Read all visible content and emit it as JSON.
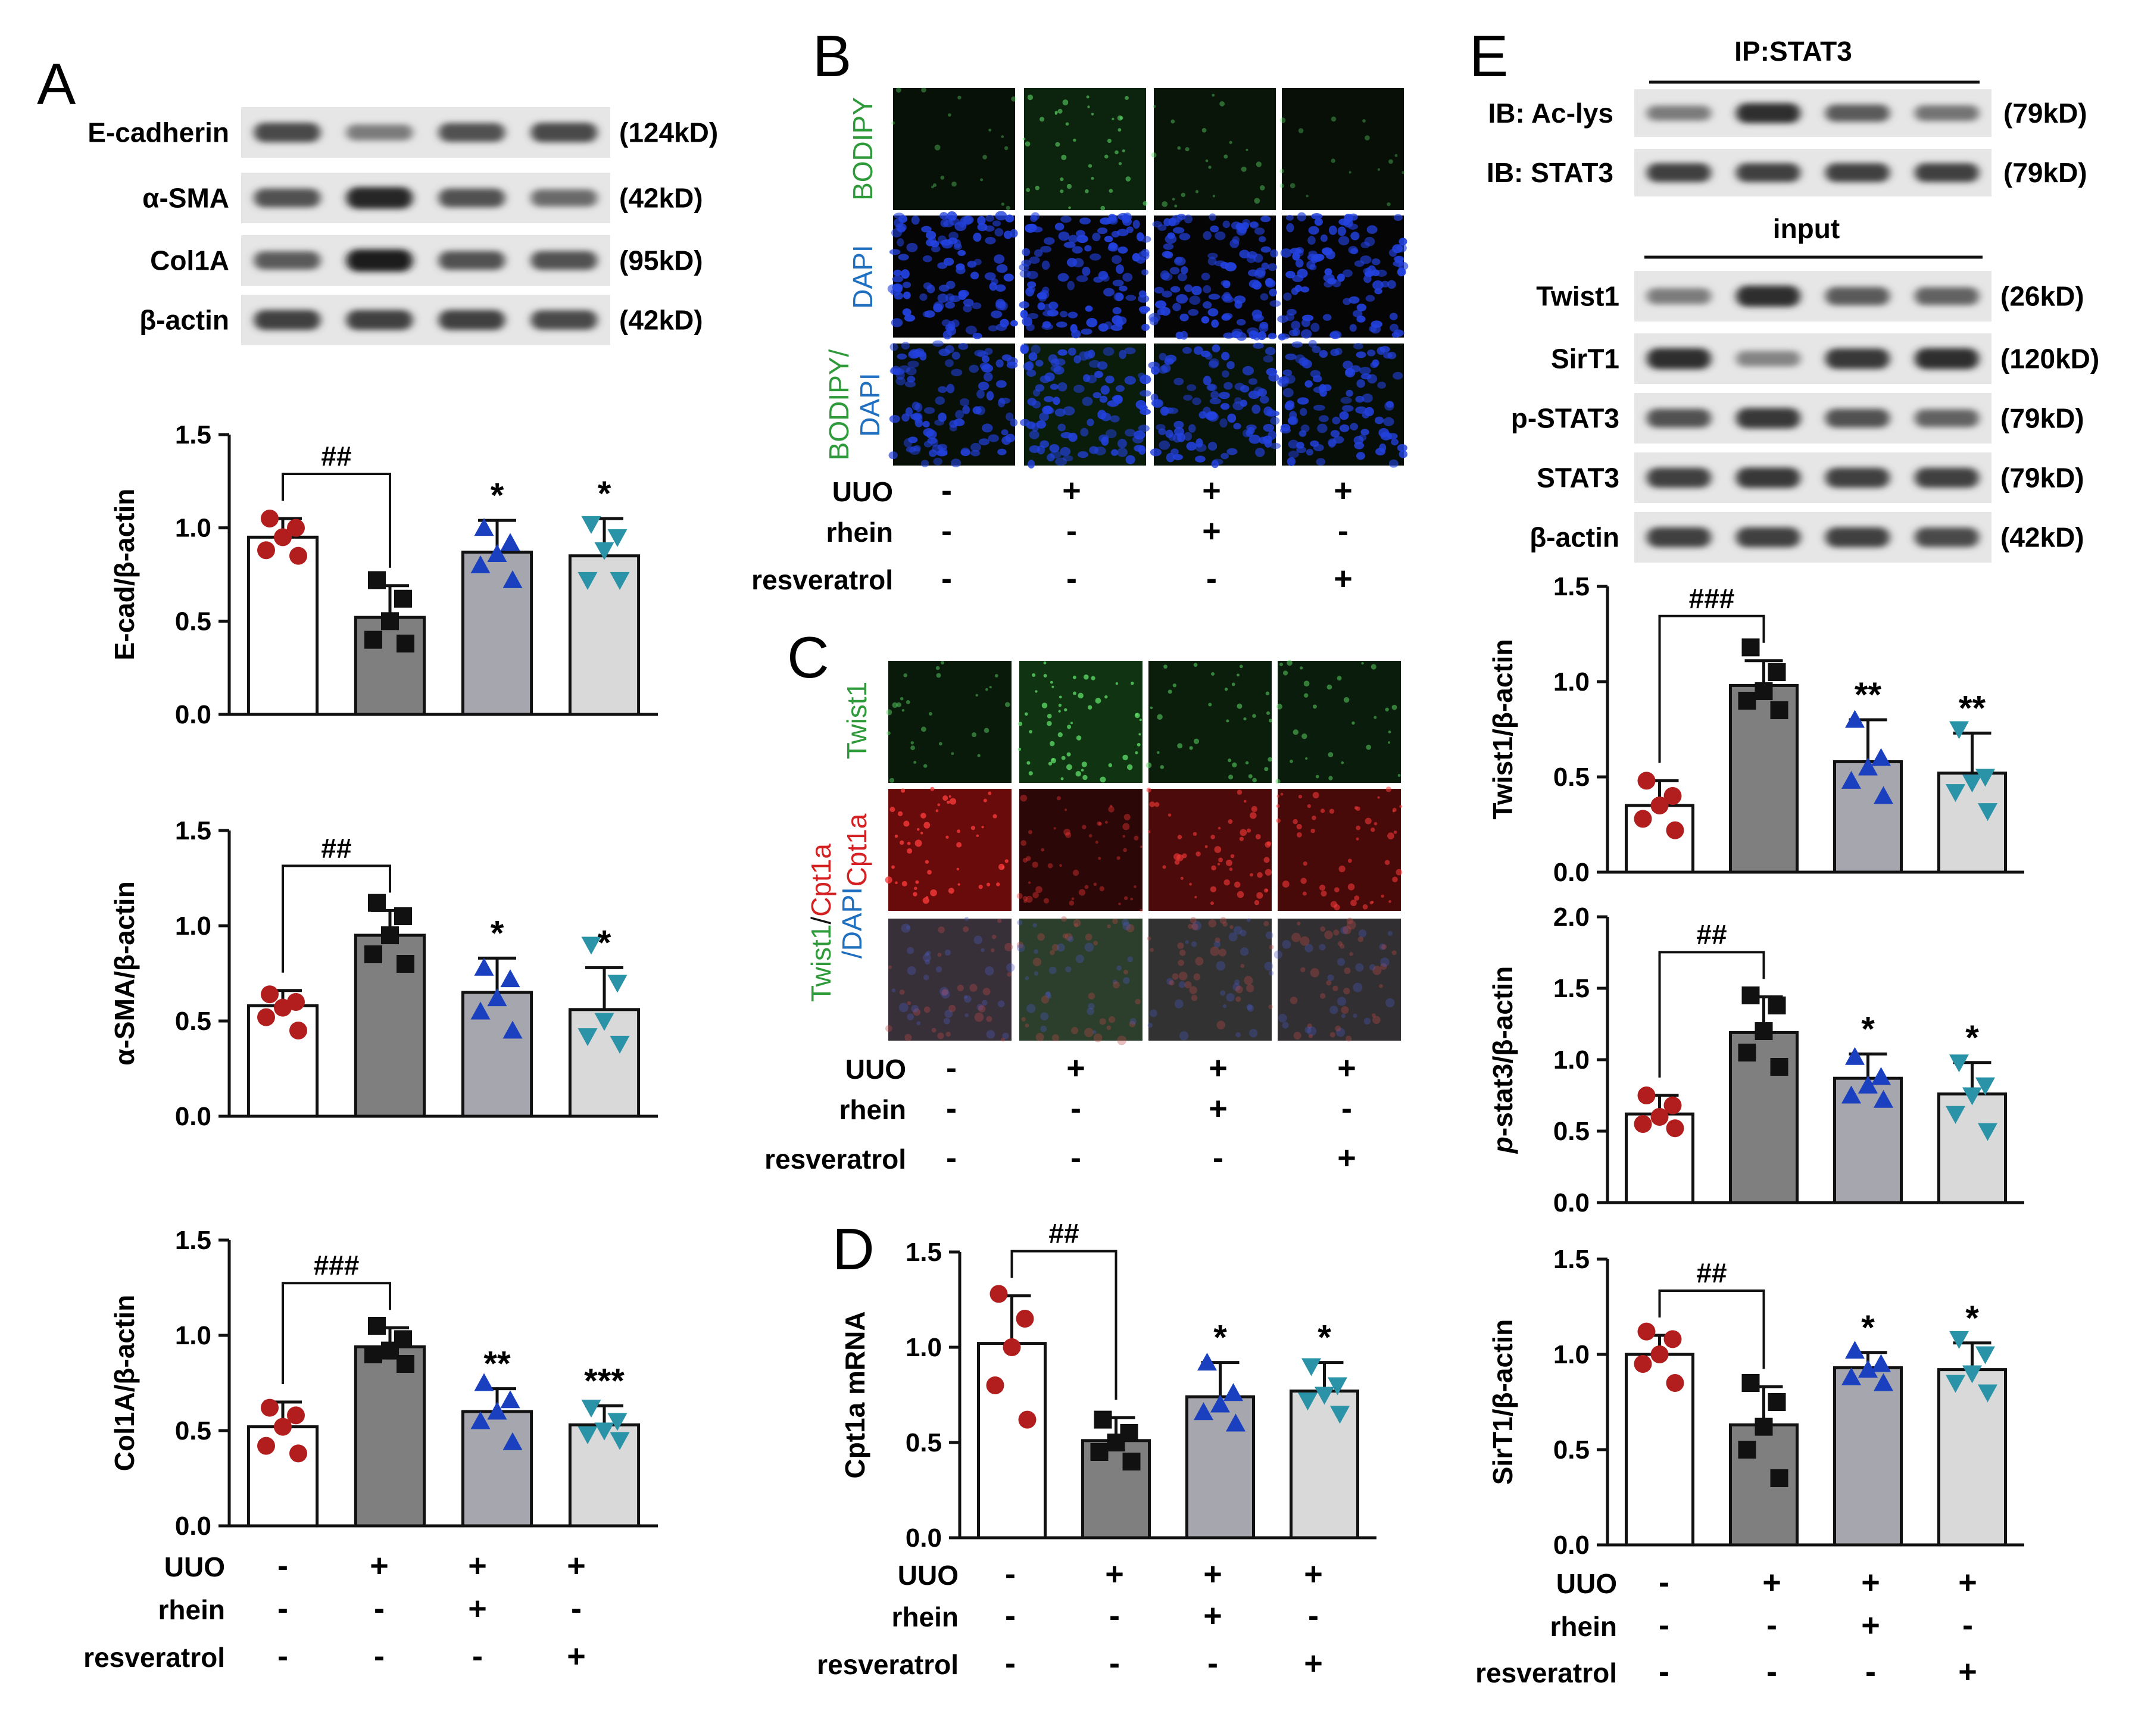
{
  "panel_labels": {
    "A": "A",
    "B": "B",
    "C": "C",
    "D": "D",
    "E": "E"
  },
  "treatment": {
    "row_labels": [
      "UUO",
      "rhein",
      "resveratrol"
    ],
    "signs": [
      [
        "-",
        "+",
        "+",
        "+"
      ],
      [
        "-",
        "-",
        "+",
        "-"
      ],
      [
        "-",
        "-",
        "-",
        "+"
      ]
    ]
  },
  "colors": {
    "group_fill": [
      "#ffffff",
      "#7f7f7f",
      "#a6a6ae",
      "#d9d9d9"
    ],
    "dot_color": [
      "#b21e1e",
      "#111111",
      "#1a3fbf",
      "#2a93a8"
    ],
    "dot_shape": [
      "circle",
      "square",
      "triangle-up",
      "triangle-down"
    ],
    "bodipy_green": "#2e9a3a",
    "dapi_blue": "#1f6fc1",
    "cpt1a_red": "#d42020"
  },
  "panelA": {
    "blots": [
      {
        "name": "E-cadherin",
        "size": "(124kD)",
        "intensity": [
          0.75,
          0.45,
          0.7,
          0.75
        ]
      },
      {
        "name": "α-SMA",
        "size": "(42kD)",
        "intensity": [
          0.7,
          0.95,
          0.7,
          0.55
        ]
      },
      {
        "name": "Col1A",
        "size": "(95kD)",
        "intensity": [
          0.65,
          1.0,
          0.7,
          0.7
        ]
      },
      {
        "name": "β-actin",
        "size": "(42kD)",
        "intensity": [
          0.8,
          0.8,
          0.8,
          0.75
        ]
      }
    ]
  },
  "panelB": {
    "row_labels": [
      [
        "BODIPY"
      ],
      [
        "DAPI"
      ],
      [
        "BODIPY/",
        "DAPI"
      ]
    ],
    "green_level": [
      0.15,
      0.55,
      0.25,
      0.12
    ]
  },
  "panelC": {
    "row_labels": [
      [
        "Twist1"
      ],
      [
        "Cpt1a"
      ],
      [
        "Twist1/Cpt1a",
        "/DAPI"
      ]
    ],
    "green_level": [
      0.35,
      0.9,
      0.45,
      0.4
    ],
    "red_level": [
      0.95,
      0.3,
      0.65,
      0.6
    ]
  },
  "panelE": {
    "ip_header": "IP:STAT3",
    "input_header": "input",
    "ip_blots": [
      {
        "name": "IB: Ac-lys",
        "size": "(79kD)",
        "intensity": [
          0.45,
          0.9,
          0.65,
          0.5
        ]
      },
      {
        "name": "IB: STAT3",
        "size": "(79kD)",
        "intensity": [
          0.8,
          0.8,
          0.8,
          0.8
        ]
      }
    ],
    "input_blots": [
      {
        "name": "Twist1",
        "size": "(26kD)",
        "intensity": [
          0.45,
          0.9,
          0.65,
          0.6
        ]
      },
      {
        "name": "SirT1",
        "size": "(120kD)",
        "intensity": [
          0.9,
          0.4,
          0.85,
          0.9
        ]
      },
      {
        "name": "p-STAT3",
        "size": "(79kD)",
        "intensity": [
          0.7,
          0.85,
          0.7,
          0.6
        ]
      },
      {
        "name": "STAT3",
        "size": "(79kD)",
        "intensity": [
          0.8,
          0.85,
          0.8,
          0.8
        ]
      },
      {
        "name": "β-actin",
        "size": "(42kD)",
        "intensity": [
          0.8,
          0.8,
          0.8,
          0.75
        ]
      }
    ]
  },
  "chart_data": [
    {
      "id": "A1",
      "type": "bar",
      "ylabel": "E-cad/β-actin",
      "ylim": [
        0,
        1.5
      ],
      "yticks": [
        "0.0",
        "0.5",
        "1.0",
        "1.5"
      ],
      "values": [
        0.95,
        0.52,
        0.87,
        0.85
      ],
      "sd": [
        0.1,
        0.17,
        0.17,
        0.2
      ],
      "points": [
        [
          1.05,
          1.0,
          0.95,
          0.88,
          0.85
        ],
        [
          0.72,
          0.62,
          0.5,
          0.4,
          0.38
        ],
        [
          1.0,
          0.92,
          0.86,
          0.8,
          0.72
        ],
        [
          1.02,
          0.95,
          0.88,
          0.72,
          0.72
        ]
      ],
      "significance": [
        "",
        "##",
        "*",
        "*"
      ],
      "bracket": "##"
    },
    {
      "id": "A2",
      "type": "bar",
      "ylabel": "α-SMA/β-actin",
      "ylim": [
        0,
        1.5
      ],
      "yticks": [
        "0.0",
        "0.5",
        "1.0",
        "1.5"
      ],
      "values": [
        0.58,
        0.95,
        0.65,
        0.56
      ],
      "sd": [
        0.08,
        0.13,
        0.18,
        0.22
      ],
      "points": [
        [
          0.64,
          0.6,
          0.57,
          0.52,
          0.45
        ],
        [
          1.12,
          1.05,
          0.95,
          0.85,
          0.8
        ],
        [
          0.78,
          0.72,
          0.62,
          0.55,
          0.45
        ],
        [
          0.9,
          0.7,
          0.5,
          0.42,
          0.38
        ]
      ],
      "significance": [
        "",
        "##",
        "*",
        "*"
      ],
      "bracket": "##"
    },
    {
      "id": "A3",
      "type": "bar",
      "ylabel": "Col1A/β-actin",
      "ylim": [
        0,
        1.5
      ],
      "yticks": [
        "0.0",
        "0.5",
        "1.0",
        "1.5"
      ],
      "values": [
        0.52,
        0.94,
        0.6,
        0.53
      ],
      "sd": [
        0.13,
        0.1,
        0.12,
        0.1
      ],
      "points": [
        [
          0.62,
          0.58,
          0.52,
          0.42,
          0.38
        ],
        [
          1.05,
          0.98,
          0.92,
          0.9,
          0.85
        ],
        [
          0.75,
          0.66,
          0.6,
          0.55,
          0.44
        ],
        [
          0.62,
          0.55,
          0.5,
          0.48,
          0.45
        ]
      ],
      "significance": [
        "",
        "###",
        "**",
        "***"
      ],
      "bracket": "###"
    },
    {
      "id": "D",
      "type": "bar",
      "ylabel": "Cpt1a mRNA",
      "ylim": [
        0,
        1.5
      ],
      "yticks": [
        "0.0",
        "0.5",
        "1.0",
        "1.5"
      ],
      "values": [
        1.02,
        0.51,
        0.74,
        0.77
      ],
      "sd": [
        0.25,
        0.12,
        0.18,
        0.15
      ],
      "points": [
        [
          1.28,
          1.15,
          1.0,
          0.8,
          0.62
        ],
        [
          0.62,
          0.55,
          0.5,
          0.45,
          0.4
        ],
        [
          0.92,
          0.76,
          0.7,
          0.66,
          0.6
        ],
        [
          0.9,
          0.8,
          0.75,
          0.72,
          0.65
        ]
      ],
      "significance": [
        "",
        "##",
        "*",
        "*"
      ],
      "bracket": "##"
    },
    {
      "id": "E1",
      "type": "bar",
      "ylabel": "Twist1/β-actin",
      "ylim": [
        0,
        1.5
      ],
      "yticks": [
        "0.0",
        "0.5",
        "1.0",
        "1.5"
      ],
      "values": [
        0.35,
        0.98,
        0.58,
        0.52
      ],
      "sd": [
        0.13,
        0.13,
        0.22,
        0.21
      ],
      "points": [
        [
          0.48,
          0.4,
          0.35,
          0.28,
          0.22
        ],
        [
          1.18,
          1.05,
          0.95,
          0.9,
          0.85
        ],
        [
          0.8,
          0.6,
          0.55,
          0.48,
          0.4
        ],
        [
          0.75,
          0.5,
          0.47,
          0.42,
          0.32
        ]
      ],
      "significance": [
        "",
        "###",
        "**",
        "**"
      ],
      "bracket": "###"
    },
    {
      "id": "E2",
      "type": "bar",
      "ylabel": "p-stat3/β-actin",
      "ylim": [
        0,
        2.0
      ],
      "yticks": [
        "0.0",
        "0.5",
        "1.0",
        "1.5",
        "2.0"
      ],
      "values": [
        0.62,
        1.19,
        0.87,
        0.76
      ],
      "sd": [
        0.13,
        0.25,
        0.17,
        0.22
      ],
      "points": [
        [
          0.75,
          0.68,
          0.6,
          0.55,
          0.52
        ],
        [
          1.45,
          1.38,
          1.2,
          1.05,
          0.95
        ],
        [
          1.02,
          0.88,
          0.82,
          0.75,
          0.72
        ],
        [
          0.98,
          0.82,
          0.75,
          0.62,
          0.5
        ]
      ],
      "significance": [
        "",
        "##",
        "*",
        "*"
      ],
      "bracket": "##"
    },
    {
      "id": "E3",
      "type": "bar",
      "ylabel": "SirT1/β-actin",
      "ylim": [
        0,
        1.5
      ],
      "yticks": [
        "0.0",
        "0.5",
        "1.0",
        "1.5"
      ],
      "values": [
        1.0,
        0.63,
        0.93,
        0.92
      ],
      "sd": [
        0.1,
        0.2,
        0.08,
        0.14
      ],
      "points": [
        [
          1.12,
          1.08,
          1.0,
          0.95,
          0.85
        ],
        [
          0.85,
          0.75,
          0.62,
          0.5,
          0.35
        ],
        [
          1.02,
          0.95,
          0.92,
          0.88,
          0.85
        ],
        [
          1.08,
          1.0,
          0.9,
          0.85,
          0.8
        ]
      ],
      "significance": [
        "",
        "##",
        "*",
        "*"
      ],
      "bracket": "##"
    }
  ]
}
